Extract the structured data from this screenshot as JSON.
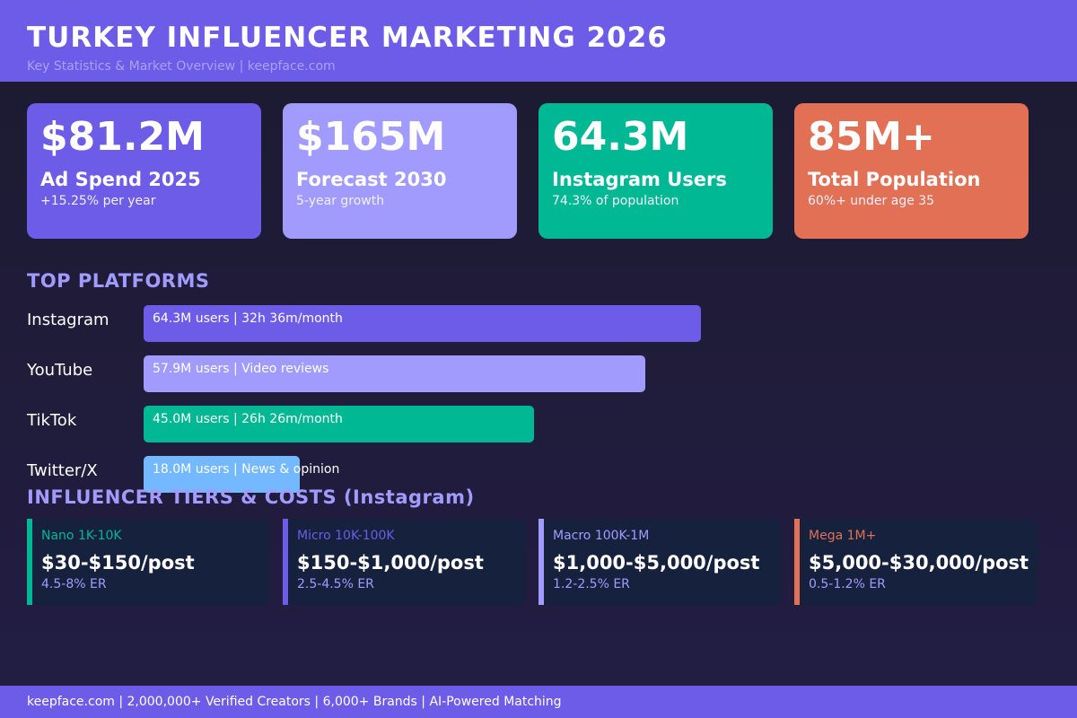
{
  "header": {
    "title": "TURKEY INFLUENCER MARKETING 2026",
    "subtitle": "Key Statistics & Market Overview  |  keepface.com"
  },
  "colors": {
    "header_bg": "#6c5ce7",
    "primary": "#6c5ce7",
    "lavender": "#a29bfe",
    "teal": "#00b894",
    "coral": "#e17055",
    "sky": "#74b9ff",
    "card_dark": "#16213e"
  },
  "stats": [
    {
      "value": "$81.2M",
      "label": "Ad Spend 2025",
      "sub": "+15.25% per year",
      "color": "#6c5ce7"
    },
    {
      "value": "$165M",
      "label": "Forecast 2030",
      "sub": "5-year growth",
      "color": "#a29bfe"
    },
    {
      "value": "64.3M",
      "label": "Instagram Users",
      "sub": "74.3% of population",
      "color": "#00b894"
    },
    {
      "value": "85M+",
      "label": "Total Population",
      "sub": "60%+ under age 35",
      "color": "#e17055"
    }
  ],
  "platforms": {
    "title": "TOP PLATFORMS",
    "items": [
      {
        "name": "Instagram",
        "users_m": 64.3,
        "detail": "64.3M users  |  32h 36m/month",
        "color": "#6c5ce7"
      },
      {
        "name": "YouTube",
        "users_m": 57.9,
        "detail": "57.9M users  |  Video reviews",
        "color": "#a29bfe"
      },
      {
        "name": "TikTok",
        "users_m": 45.0,
        "detail": "45.0M users  |  26h 26m/month",
        "color": "#00b894"
      },
      {
        "name": "Twitter/X",
        "users_m": 18.0,
        "detail": "18.0M users  |  News & opinion",
        "color": "#74b9ff"
      }
    ]
  },
  "tiers": {
    "title": "INFLUENCER TIERS & COSTS (Instagram)",
    "items": [
      {
        "name": "Nano  1K-10K",
        "price": "$30-$150/post",
        "er": "4.5-8% ER",
        "color": "#00b894"
      },
      {
        "name": "Micro  10K-100K",
        "price": "$150-$1,000/post",
        "er": "2.5-4.5% ER",
        "color": "#6c5ce7"
      },
      {
        "name": "Macro  100K-1M",
        "price": "$1,000-$5,000/post",
        "er": "1.2-2.5% ER",
        "color": "#a29bfe"
      },
      {
        "name": "Mega  1M+",
        "price": "$5,000-$30,000/post",
        "er": "0.5-1.2% ER",
        "color": "#e17055"
      }
    ]
  },
  "footer": {
    "text": "keepface.com  |  2,000,000+ Verified Creators  |  6,000+ Brands  |  AI-Powered Matching"
  }
}
